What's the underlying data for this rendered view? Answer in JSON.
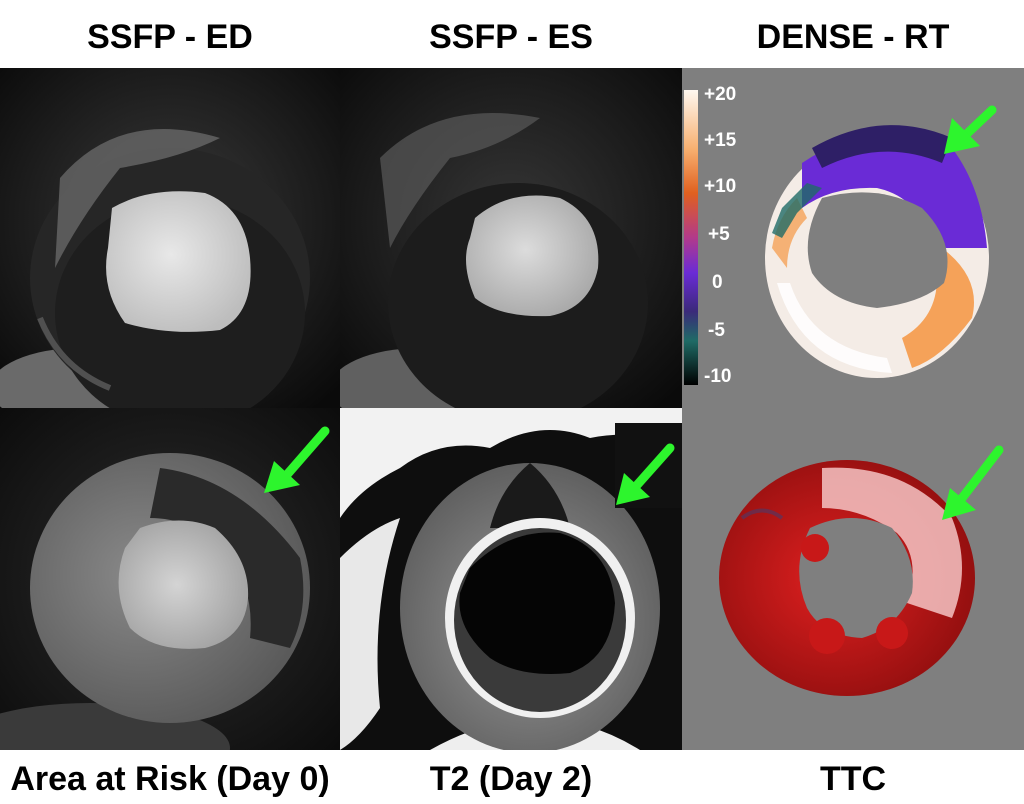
{
  "headers": {
    "col1": "SSFP - ED",
    "col2": "SSFP - ES",
    "col3": "DENSE - RT"
  },
  "footers": {
    "col1": "Area at Risk (Day 0)",
    "col2": "T2 (Day 2)",
    "col3": "TTC"
  },
  "colorbar": {
    "labels": [
      "+20",
      "+15",
      "+10",
      "+5",
      "0",
      "-5",
      "-10"
    ],
    "stops": [
      "#fff8f0",
      "#f58a2a",
      "#b23a8a",
      "#6a2bd6",
      "#3b2a7a",
      "#1f6b66",
      "#000000"
    ]
  },
  "colors": {
    "arrow": "#2df52d",
    "panel_gray": "#7f7f7f",
    "ttc_red": "#c01818"
  }
}
